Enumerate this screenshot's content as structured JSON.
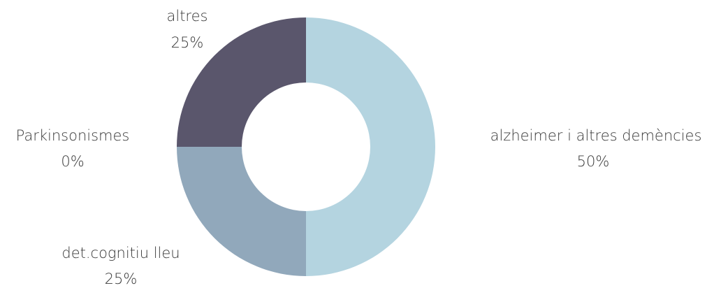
{
  "chart_data": {
    "type": "pie",
    "donut": true,
    "title": "",
    "legend": "none",
    "slices": [
      {
        "label": "alzheimer i altres demències",
        "value": 50,
        "value_label": "50%",
        "color": "#b4d4e0"
      },
      {
        "label": "det.cognitiu lleu",
        "value": 25,
        "value_label": "25%",
        "color": "#91a8bb"
      },
      {
        "label": "Parkinsonismes",
        "value": 0,
        "value_label": "0%",
        "color": "#7d8ea6"
      },
      {
        "label": "altres",
        "value": 25,
        "value_label": "25%",
        "color": "#5a566c"
      }
    ]
  }
}
